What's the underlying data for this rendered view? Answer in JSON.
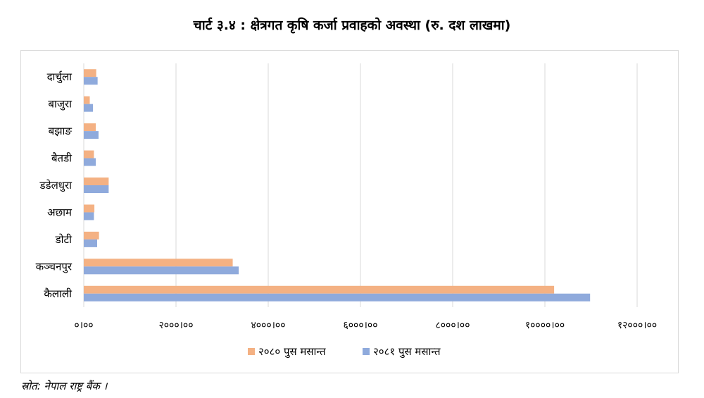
{
  "title": "चार्ट ३.४ : क्षेत्रगत कृषि कर्जा प्रवाहको अवस्था (रु. दश लाखमा)",
  "source": "स्रोत: नेपाल राष्ट्र बैंक ।",
  "colors": {
    "series1": "#f4b183",
    "series2": "#8faadc",
    "grid": "#d9d9d9",
    "frame": "#d9d9d9"
  },
  "chart_data": {
    "type": "bar",
    "orientation": "horizontal",
    "categories": [
      "दार्चुला",
      "बाजुरा",
      "बझाङ",
      "बैतडी",
      "डडेलधुरा",
      "अछाम",
      "डोटी",
      "कञ्चनपुर",
      "कैलाली"
    ],
    "series": [
      {
        "name": "२०८० पुस मसान्त",
        "values": [
          270,
          130,
          260,
          220,
          540,
          230,
          330,
          3230,
          10200
        ]
      },
      {
        "name": "२०८१ पुस मसान्त",
        "values": [
          300,
          200,
          320,
          260,
          540,
          220,
          290,
          3360,
          10980
        ]
      }
    ],
    "xlim": [
      0,
      12000
    ],
    "xticks": [
      0,
      2000,
      4000,
      6000,
      8000,
      10000,
      12000
    ],
    "xtick_labels": [
      "०।००",
      "२०००।००",
      "४०००।००",
      "६०००।००",
      "८०००।००",
      "१००००।००",
      "१२०००।००"
    ],
    "grid": "vertical",
    "legend_position": "bottom"
  }
}
